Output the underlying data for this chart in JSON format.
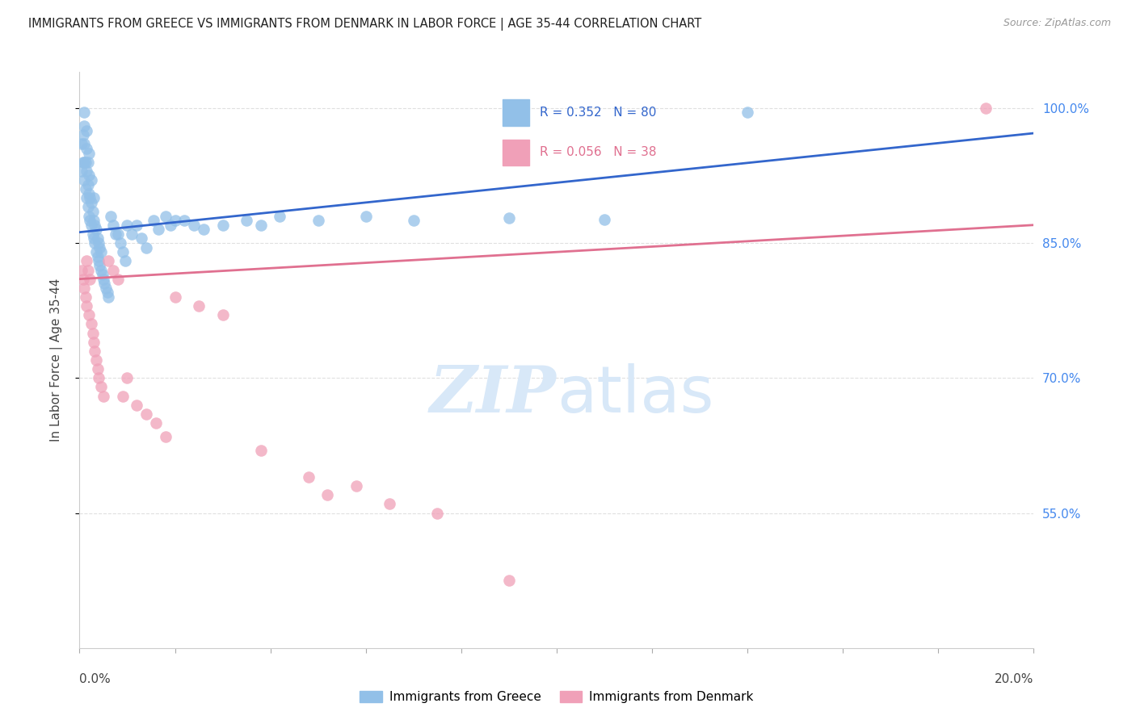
{
  "title": "IMMIGRANTS FROM GREECE VS IMMIGRANTS FROM DENMARK IN LABOR FORCE | AGE 35-44 CORRELATION CHART",
  "source": "Source: ZipAtlas.com",
  "ylabel": "In Labor Force | Age 35-44",
  "right_ytick_labels": [
    "100.0%",
    "85.0%",
    "70.0%",
    "55.0%"
  ],
  "right_ytick_values": [
    1.0,
    0.85,
    0.7,
    0.55
  ],
  "legend_greece": "Immigrants from Greece",
  "legend_denmark": "Immigrants from Denmark",
  "R_greece": 0.352,
  "N_greece": 80,
  "R_denmark": 0.056,
  "N_denmark": 38,
  "blue_scatter_color": "#92C0E8",
  "blue_line_color": "#3366CC",
  "pink_scatter_color": "#F0A0B8",
  "pink_line_color": "#E07090",
  "title_color": "#222222",
  "source_color": "#999999",
  "right_axis_color": "#4488EE",
  "watermark_color": "#D8E8F8",
  "grid_color": "#DDDDDD",
  "background_color": "#FFFFFF",
  "xmin": 0.0,
  "xmax": 0.2,
  "ymin": 0.4,
  "ymax": 1.04,
  "greece_x": [
    0.0005,
    0.0005,
    0.0008,
    0.0008,
    0.001,
    0.001,
    0.001,
    0.001,
    0.001,
    0.0012,
    0.0012,
    0.0015,
    0.0015,
    0.0015,
    0.0015,
    0.0018,
    0.0018,
    0.0018,
    0.002,
    0.002,
    0.002,
    0.002,
    0.0022,
    0.0022,
    0.0025,
    0.0025,
    0.0025,
    0.0028,
    0.0028,
    0.003,
    0.003,
    0.003,
    0.0032,
    0.0032,
    0.0035,
    0.0035,
    0.0038,
    0.0038,
    0.004,
    0.004,
    0.0042,
    0.0042,
    0.0045,
    0.0045,
    0.0048,
    0.005,
    0.0052,
    0.0055,
    0.0058,
    0.006,
    0.0065,
    0.007,
    0.0075,
    0.008,
    0.0085,
    0.009,
    0.0095,
    0.01,
    0.011,
    0.012,
    0.013,
    0.014,
    0.0155,
    0.0165,
    0.018,
    0.019,
    0.02,
    0.022,
    0.024,
    0.026,
    0.03,
    0.035,
    0.038,
    0.042,
    0.05,
    0.06,
    0.07,
    0.09,
    0.11,
    0.14
  ],
  "greece_y": [
    0.93,
    0.96,
    0.94,
    0.97,
    0.92,
    0.94,
    0.96,
    0.98,
    0.995,
    0.91,
    0.94,
    0.9,
    0.93,
    0.955,
    0.975,
    0.89,
    0.915,
    0.94,
    0.88,
    0.905,
    0.925,
    0.95,
    0.875,
    0.9,
    0.87,
    0.895,
    0.92,
    0.86,
    0.885,
    0.855,
    0.875,
    0.9,
    0.85,
    0.87,
    0.84,
    0.865,
    0.835,
    0.855,
    0.83,
    0.85,
    0.825,
    0.845,
    0.82,
    0.84,
    0.815,
    0.81,
    0.805,
    0.8,
    0.795,
    0.79,
    0.88,
    0.87,
    0.86,
    0.86,
    0.85,
    0.84,
    0.83,
    0.87,
    0.86,
    0.87,
    0.855,
    0.845,
    0.875,
    0.865,
    0.88,
    0.87,
    0.875,
    0.875,
    0.87,
    0.865,
    0.87,
    0.875,
    0.87,
    0.88,
    0.875,
    0.88,
    0.875,
    0.878,
    0.876,
    0.995
  ],
  "denmark_x": [
    0.0005,
    0.0008,
    0.001,
    0.0012,
    0.0015,
    0.0015,
    0.0018,
    0.002,
    0.0022,
    0.0025,
    0.0028,
    0.003,
    0.0032,
    0.0035,
    0.0038,
    0.004,
    0.0045,
    0.005,
    0.006,
    0.007,
    0.008,
    0.009,
    0.01,
    0.012,
    0.014,
    0.016,
    0.018,
    0.02,
    0.025,
    0.03,
    0.038,
    0.048,
    0.052,
    0.058,
    0.065,
    0.075,
    0.09,
    0.19
  ],
  "denmark_y": [
    0.82,
    0.81,
    0.8,
    0.79,
    0.83,
    0.78,
    0.82,
    0.77,
    0.81,
    0.76,
    0.75,
    0.74,
    0.73,
    0.72,
    0.71,
    0.7,
    0.69,
    0.68,
    0.83,
    0.82,
    0.81,
    0.68,
    0.7,
    0.67,
    0.66,
    0.65,
    0.635,
    0.79,
    0.78,
    0.77,
    0.62,
    0.59,
    0.57,
    0.58,
    0.56,
    0.55,
    0.475,
    1.0
  ],
  "greece_trendline_x": [
    0.0,
    0.2
  ],
  "greece_trendline_y": [
    0.862,
    0.972
  ],
  "denmark_trendline_x": [
    0.0,
    0.2
  ],
  "denmark_trendline_y": [
    0.81,
    0.87
  ]
}
